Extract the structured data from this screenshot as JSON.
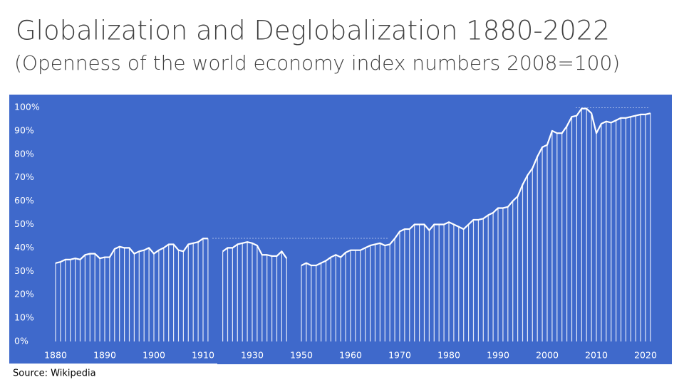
{
  "chart_data": {
    "type": "bar-line",
    "title": "Globalization and Deglobalization 1880-2022",
    "subtitle": "(Openness of the world economy index numbers 2008=100)",
    "source": "Source:  Wikipedia",
    "categories": [
      "1880",
      null,
      null,
      null,
      null,
      null,
      null,
      null,
      null,
      null,
      "1890",
      null,
      null,
      null,
      null,
      null,
      null,
      null,
      null,
      null,
      "1900",
      null,
      null,
      null,
      null,
      null,
      null,
      null,
      null,
      null,
      "1910",
      null,
      null,
      null,
      null,
      null,
      null,
      null,
      null,
      null,
      "1930",
      null,
      null,
      null,
      null,
      null,
      null,
      null,
      null,
      null,
      "1950",
      null,
      null,
      null,
      null,
      null,
      null,
      null,
      null,
      null,
      "1960",
      null,
      null,
      null,
      null,
      null,
      null,
      null,
      null,
      null,
      "1970",
      null,
      null,
      null,
      null,
      null,
      null,
      null,
      null,
      null,
      "1980",
      null,
      null,
      null,
      null,
      null,
      null,
      null,
      null,
      null,
      "1990",
      null,
      null,
      null,
      null,
      null,
      null,
      null,
      null,
      null,
      "2000",
      null,
      null,
      null,
      null,
      null,
      null,
      null,
      null,
      null,
      "2010",
      null,
      null,
      null,
      null,
      null,
      null,
      null,
      null,
      null,
      "2020",
      null
    ],
    "values": [
      33.5,
      34,
      35,
      35,
      35.5,
      35,
      37,
      37.5,
      37.5,
      35.5,
      36,
      36,
      39.5,
      40.5,
      40,
      40,
      37.5,
      38.5,
      39,
      40,
      37.5,
      39,
      40,
      41.5,
      41.5,
      39,
      38.5,
      41.5,
      42,
      42.5,
      44,
      44,
      null,
      null,
      38.5,
      40,
      40,
      41.5,
      42,
      42.5,
      42,
      41,
      37,
      37,
      36.5,
      36.5,
      38.5,
      35.5,
      null,
      null,
      32.5,
      33.5,
      32.5,
      32.5,
      33.5,
      34.5,
      36,
      37,
      36,
      38,
      39,
      39,
      39,
      40,
      41,
      41.5,
      42,
      41,
      41.5,
      44,
      47,
      48,
      48,
      50,
      50,
      50,
      47.5,
      50,
      50,
      50,
      51,
      50,
      49,
      48,
      50,
      52,
      52,
      52.5,
      54,
      55,
      57,
      57,
      57.5,
      60,
      62,
      67,
      71,
      74,
      79,
      83,
      84,
      90,
      89,
      89,
      92,
      96,
      96.5,
      99.5,
      99.5,
      97.5,
      89,
      93,
      94,
      93.5,
      94.5,
      95.5,
      95.5,
      96,
      96.5,
      97,
      97,
      97.5
    ],
    "color": "#ffffff",
    "ylim": [
      0,
      100
    ],
    "yticks": [
      {
        "value": 0,
        "label": "0%"
      },
      {
        "value": 10,
        "label": "10%"
      },
      {
        "value": 20,
        "label": "20%"
      },
      {
        "value": 30,
        "label": "30%"
      },
      {
        "value": 40,
        "label": "40%"
      },
      {
        "value": 50,
        "label": "50%"
      },
      {
        "value": 60,
        "label": "60%"
      },
      {
        "value": 70,
        "label": "70%"
      },
      {
        "value": 80,
        "label": "80%"
      },
      {
        "value": 90,
        "label": "90%"
      },
      {
        "value": 100,
        "label": "100%"
      }
    ]
  }
}
